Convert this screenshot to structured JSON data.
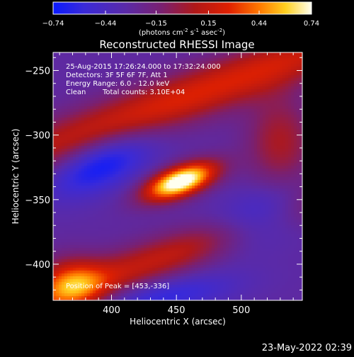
{
  "chart_data": {
    "type": "heatmap",
    "title": "Reconstructed RHESSI Image",
    "xlabel": "Heliocentric X (arcsec)",
    "ylabel": "Heliocentric Y (arcsec)",
    "xlim": [
      355,
      547
    ],
    "ylim": [
      -428,
      -236
    ],
    "xticks": [
      400,
      450,
      500
    ],
    "yticks": [
      -250,
      -300,
      -350,
      -400
    ],
    "colorbar": {
      "min": -0.74,
      "max": 0.74,
      "ticks": [
        "-0.74",
        "-0.44",
        "-0.15",
        "0.15",
        "0.44",
        "0.74"
      ],
      "label_main": "(photons cm",
      "label_exp1": "-2",
      "label_mid": " s",
      "label_exp2": "-1",
      "label_end": " asec",
      "label_exp3": "-2",
      "label_close": ")"
    },
    "annotations": {
      "time_range": "25-Aug-2015 17:26:24.000 to 17:32:24.000",
      "detectors": "Detectors: 3F 5F 6F 7F, Att 1",
      "energy": "Energy Range: 6.0 - 12.0 keV",
      "method": "Clean",
      "counts": "Total counts: 3.10E+04",
      "peak": "Position of Peak = [453,-336]"
    },
    "peak": {
      "x": 453,
      "y": -336,
      "value": 0.74
    },
    "sources": [
      {
        "kind": "peak",
        "x": 453,
        "y": -336,
        "amp": 1.18,
        "sx": 20,
        "sy": 8,
        "angle": 20
      },
      {
        "kind": "band",
        "x": 460,
        "y": -270,
        "amp": 0.55,
        "sx": 160,
        "sy": 14,
        "angle": 20
      },
      {
        "kind": "band",
        "x": 440,
        "y": -395,
        "amp": 0.45,
        "sx": 160,
        "sy": 12,
        "angle": 20
      },
      {
        "kind": "blob",
        "x": 370,
        "y": -415,
        "amp": 0.55,
        "sx": 18,
        "sy": 14,
        "angle": 0
      },
      {
        "kind": "blob",
        "x": 530,
        "y": -305,
        "amp": 0.35,
        "sx": 18,
        "sy": 25,
        "angle": 0
      },
      {
        "kind": "dip",
        "x": 392,
        "y": -322,
        "amp": -0.45,
        "sx": 30,
        "sy": 14,
        "angle": 25
      },
      {
        "kind": "dip",
        "x": 515,
        "y": -365,
        "amp": -0.5,
        "sx": 30,
        "sy": 14,
        "angle": 20
      },
      {
        "kind": "dip",
        "x": 440,
        "y": -425,
        "amp": -0.3,
        "sx": 40,
        "sy": 10,
        "angle": 10
      }
    ],
    "baseline": -0.3,
    "footer_date": "23-May-2022 02:39"
  }
}
